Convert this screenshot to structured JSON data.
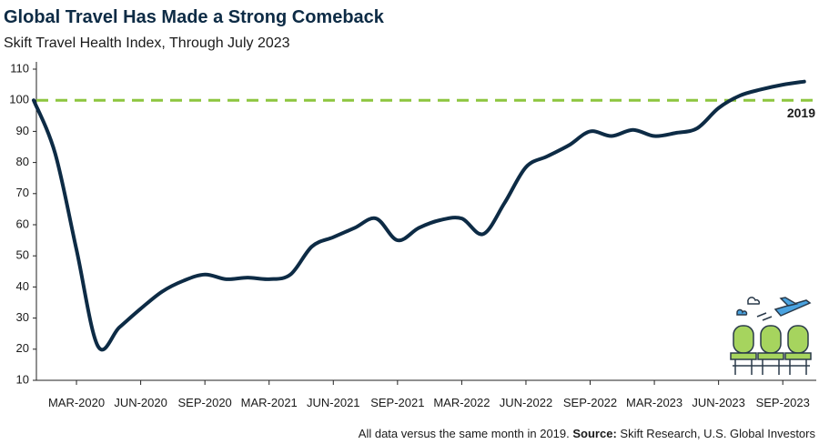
{
  "chart_data": {
    "type": "line",
    "title": "Global Travel Has Made a Strong Comeback",
    "subtitle": "Skift Travel Health Index, Through July 2023",
    "categories": [
      null,
      null,
      "MAR-2020",
      null,
      null,
      "JUN-2020",
      null,
      null,
      "SEP-2020",
      null,
      null,
      "MAR-2021",
      null,
      null,
      "JUN-2021",
      null,
      null,
      "SEP-2021",
      null,
      null,
      "MAR-2022",
      null,
      null,
      "JUN-2022",
      null,
      null,
      "SEP-2022",
      null,
      null,
      "MAR-2023",
      null,
      null,
      "JUN-2023",
      null,
      null,
      "SEP-2023",
      null
    ],
    "series": [
      {
        "color": "#0d2b45",
        "values": [
          100,
          83,
          52,
          21,
          27,
          33,
          38.5,
          42,
          44,
          42.5,
          43,
          42.5,
          44,
          53,
          56,
          59,
          62,
          55,
          59,
          61.5,
          62,
          57,
          67,
          78.5,
          82,
          85.5,
          90,
          88.5,
          90.5,
          88.5,
          89.5,
          91,
          97.5,
          101.5,
          103.5,
          105,
          106
        ]
      }
    ],
    "reference_line": {
      "value": 100,
      "label": "2019",
      "color": "#8dc63f"
    },
    "ylim": [
      10,
      110
    ],
    "yticks": [
      10,
      20,
      30,
      40,
      50,
      60,
      70,
      80,
      90,
      100,
      110
    ],
    "note": "All data versus the same month in 2019.",
    "source_label": "Source:",
    "source": "Skift Research, U.S. Global Investors"
  }
}
